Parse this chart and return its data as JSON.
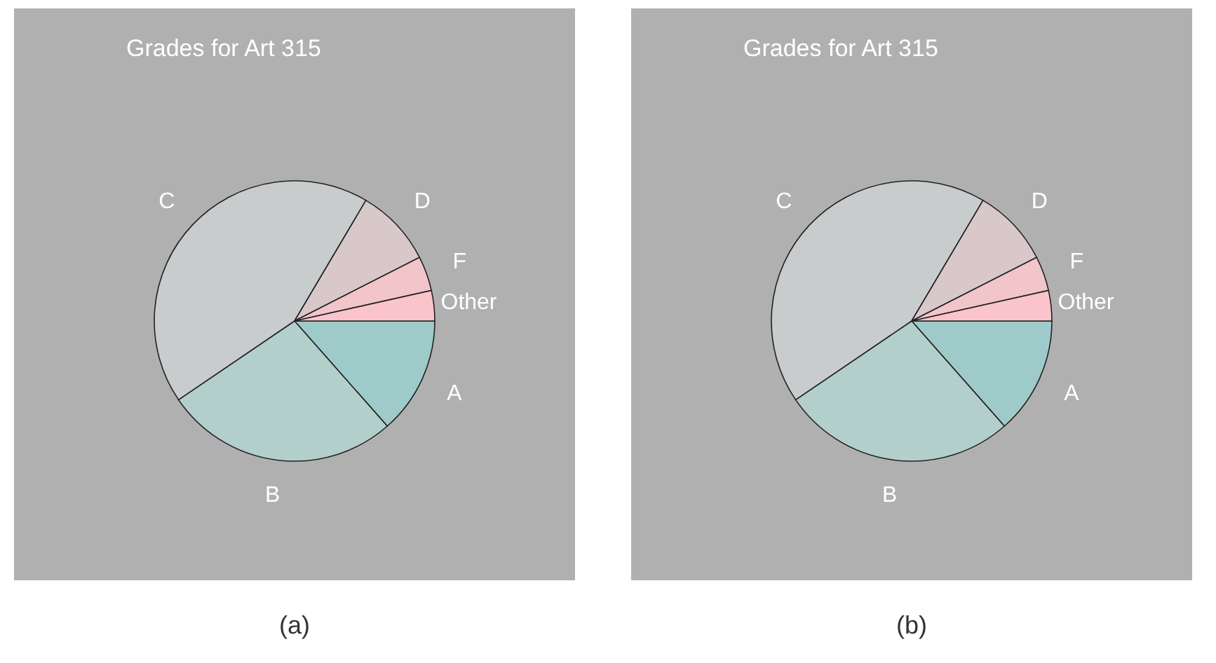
{
  "chart_data": [
    {
      "type": "pie",
      "title": "Grades for Art 315",
      "categories": [
        "A",
        "B",
        "C",
        "D",
        "F",
        "Other"
      ],
      "values": [
        13.5,
        27,
        43,
        9,
        4,
        3.5
      ],
      "colors": [
        "#9ecaca",
        "#b3cfcc",
        "#c8cccd",
        "#d8c8ca",
        "#f2c5cb",
        "#fbc4cb"
      ],
      "legend": false,
      "annotations": [
        "(a)"
      ]
    },
    {
      "type": "pie",
      "title": "Grades for Art 315",
      "categories": [
        "A",
        "B",
        "C",
        "D",
        "F",
        "Other"
      ],
      "values": [
        13.5,
        27,
        43,
        9,
        4,
        3.5
      ],
      "colors": [
        "#9ecaca",
        "#b3cfcc",
        "#c8cccd",
        "#d8c8ca",
        "#f2c5cb",
        "#fbc4cb"
      ],
      "legend": false,
      "annotations": [
        "(b)"
      ]
    }
  ]
}
